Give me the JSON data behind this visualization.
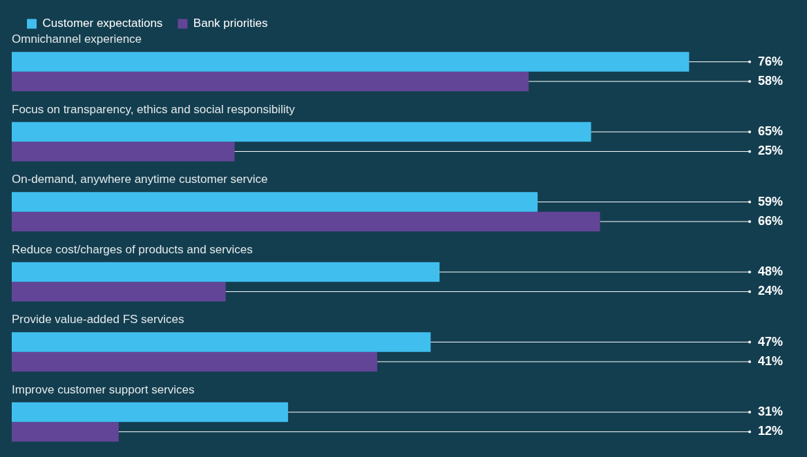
{
  "chart_data": {
    "type": "bar",
    "orientation": "horizontal",
    "legend": "top left",
    "categories": [
      "Omnichannel experience",
      "Focus on transparency, ethics and social responsibility",
      "On-demand, anywhere anytime customer service",
      "Reduce cost/charges of products and services",
      "Provide value-added FS services",
      "Improve customer support services"
    ],
    "series": [
      {
        "name": "Customer expectations",
        "color": "#40bfef",
        "values": [
          76,
          65,
          59,
          48,
          47,
          31
        ],
        "value_labels": [
          "76%",
          "65%",
          "59%",
          "48%",
          "47%",
          "31%"
        ]
      },
      {
        "name": "Bank priorities",
        "color": "#634597",
        "values": [
          58,
          25,
          66,
          24,
          41,
          12
        ],
        "value_labels": [
          "58%",
          "25%",
          "66%",
          "24%",
          "41%",
          "12%"
        ]
      }
    ]
  }
}
